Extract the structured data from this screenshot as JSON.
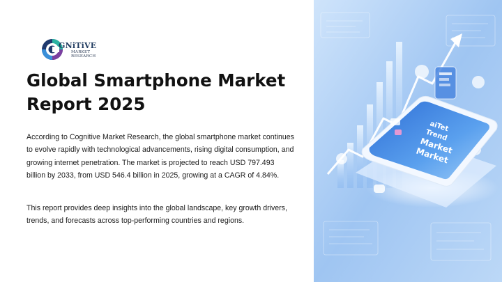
{
  "logo": {
    "brand_initial": "C",
    "brand_word": "GNiTiVE",
    "brand_sub": "MARKET RESEARCH"
  },
  "slide": {
    "title": "Global Smartphone Market Report 2025",
    "paragraph_1": "According to Cognitive Market Research, the global smartphone market continues to evolve rapidly with technological advancements, rising digital consumption, and growing internet penetration. The market is projected to reach USD 797.493 billion by 2033, from USD 546.4 billion in 2025, growing at a CAGR of 4.84%.",
    "paragraph_2": "This report provides deep insights into the global landscape, key growth drivers, trends, and forecasts across top-performing countries and regions."
  },
  "illustration": {
    "screen_lines": [
      "aiTet",
      "Trend",
      "Market",
      "Market"
    ],
    "colors": {
      "sky": "#a9ccf5",
      "deep": "#3f7fe0",
      "glow": "#e8f4ff"
    }
  }
}
